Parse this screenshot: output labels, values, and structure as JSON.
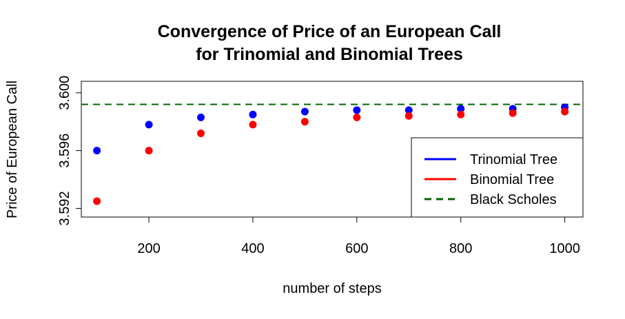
{
  "chart_data": {
    "type": "scatter",
    "title_line1": "Convergence of Price of an European Call",
    "title_line2": "for Trinomial and Binomial Trees",
    "xlabel": "number of steps",
    "ylabel": "Price of European Call",
    "xlim": [
      70,
      1035
    ],
    "ylim": [
      3.5914,
      3.6008
    ],
    "x_ticks": [
      200,
      400,
      600,
      800,
      1000
    ],
    "y_ticks": [
      3.592,
      3.596,
      3.6
    ],
    "x_tick_labels": [
      "200",
      "400",
      "600",
      "800",
      "1000"
    ],
    "y_tick_labels": [
      "3.592",
      "3.596",
      "3.600"
    ],
    "x": [
      100,
      200,
      300,
      400,
      500,
      600,
      700,
      800,
      900,
      1000
    ],
    "series": [
      {
        "name": "Trinomial Tree",
        "color": "#0000ff",
        "values": [
          3.596,
          3.5978,
          3.5983,
          3.5985,
          3.5987,
          3.5988,
          3.5988,
          3.5989,
          3.5989,
          3.599
        ]
      },
      {
        "name": "Binomial Tree",
        "color": "#ff0000",
        "values": [
          3.5925,
          3.596,
          3.5972,
          3.5978,
          3.598,
          3.5983,
          3.5984,
          3.5985,
          3.5986,
          3.5987
        ]
      }
    ],
    "reference_line": {
      "name": "Black Scholes",
      "color": "#006400",
      "value": 3.5992,
      "style": "dashed"
    },
    "legend": {
      "position": "bottom-right",
      "items": [
        "Trinomial Tree",
        "Binomial Tree",
        "Black Scholes"
      ]
    },
    "grid": false
  }
}
